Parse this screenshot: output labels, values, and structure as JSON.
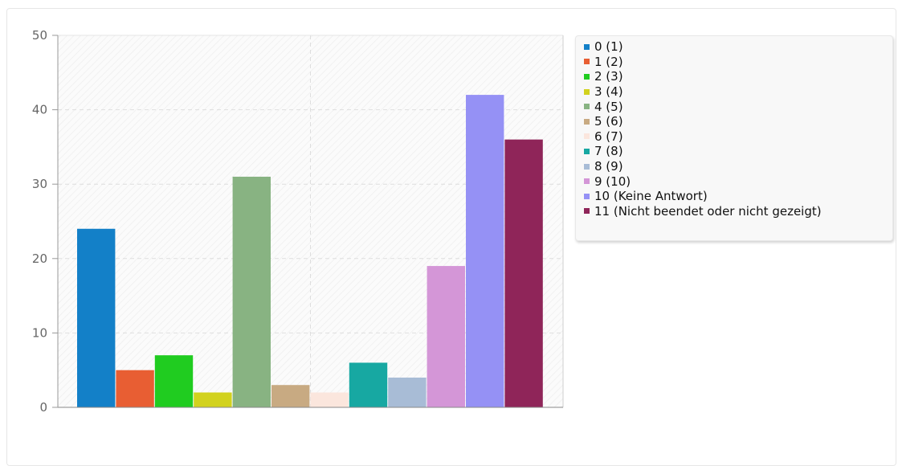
{
  "chart_data": {
    "type": "bar",
    "categories": [
      "0 (1)",
      "1 (2)",
      "2 (3)",
      "3 (4)",
      "4 (5)",
      "5 (6)",
      "6 (7)",
      "7 (8)",
      "8 (9)",
      "9 (10)",
      "10 (Keine Antwort)",
      "11 (Nicht beendet oder nicht gezeigt)"
    ],
    "values": [
      24,
      5,
      7,
      2,
      31,
      3,
      2,
      6,
      4,
      19,
      42,
      36
    ],
    "colors": [
      "#1380c8",
      "#e85e33",
      "#20cc20",
      "#d2d21e",
      "#88b382",
      "#c8aa82",
      "#fbe6dd",
      "#17a8a2",
      "#a8bcd6",
      "#d496d7",
      "#9591f5",
      "#8f2559"
    ],
    "title": "",
    "xlabel": "",
    "ylabel": "",
    "ylim": [
      0,
      50
    ],
    "yticks": [
      0,
      10,
      20,
      30,
      40,
      50
    ],
    "grid": true,
    "legend_position": "right"
  }
}
